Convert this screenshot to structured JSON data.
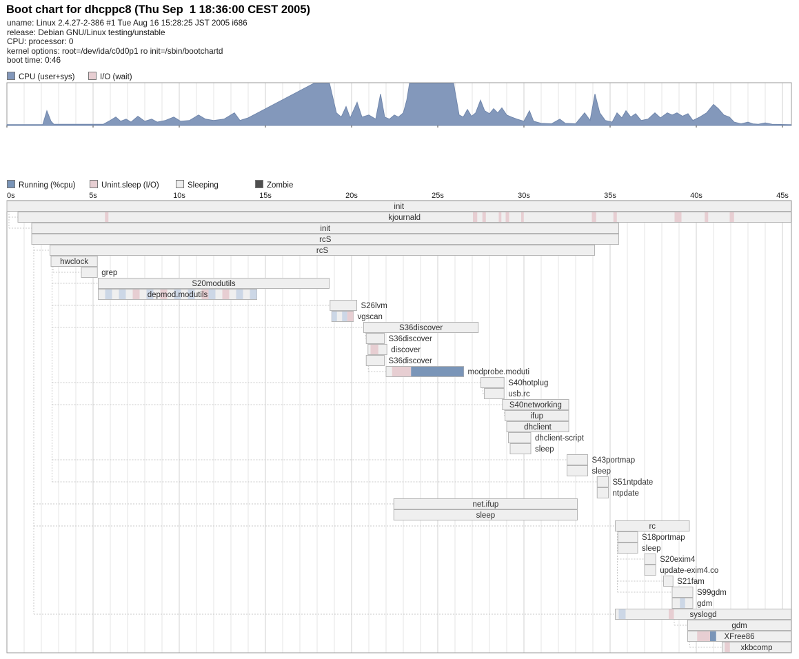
{
  "header": {
    "title": "Boot chart for dhcppc8 (Thu Sep  1 18:36:00 CEST 2005)",
    "info_lines": [
      "uname: Linux 2.4.27-2-386 #1 Tue Aug 16 15:28:25 JST 2005 i686",
      "release: Debian GNU/Linux testing/unstable",
      "CPU: processor: 0",
      "kernel options: root=/dev/ida/c0d0p1 ro init=/sbin/bootchartd",
      "boot time: 0:46"
    ]
  },
  "colors": {
    "cpu_fill": "#8398bb",
    "cpu_stroke": "#7187ac",
    "run_blue": "#7a95b8",
    "io_pink": "#e7ced2",
    "sleep_gray": "#efefef",
    "zombie": "#4f4f4f",
    "light_blue": "#ccd7e6",
    "bar_border": "#b5b5b5",
    "grid_minor": "#e6e6e6",
    "grid_major": "#d2d2d2",
    "frame": "#9a9a9a",
    "connector": "#c8c8c8",
    "label_text": "#303030"
  },
  "chart_data": [
    {
      "type": "area",
      "title": "CPU usage during boot",
      "x_unit": "seconds",
      "xlim": [
        0,
        45.5
      ],
      "ylim": [
        0,
        100
      ],
      "grid": true,
      "legend_position": "top-left",
      "legend_items": [
        {
          "label": "CPU (user+sys)",
          "color_key": "cpu_fill"
        },
        {
          "label": "I/O (wait)",
          "color_key": "io_pink"
        }
      ],
      "series": [
        {
          "name": "CPU (user+sys)",
          "points": [
            [
              0,
              2
            ],
            [
              2.08,
              2
            ],
            [
              2.32,
              35
            ],
            [
              2.56,
              10
            ],
            [
              2.72,
              3
            ],
            [
              5.6,
              3
            ],
            [
              6.0,
              12
            ],
            [
              6.32,
              20
            ],
            [
              6.6,
              10
            ],
            [
              6.92,
              15
            ],
            [
              7.2,
              8
            ],
            [
              7.6,
              22
            ],
            [
              8.0,
              10
            ],
            [
              8.4,
              15
            ],
            [
              8.72,
              8
            ],
            [
              9.2,
              12
            ],
            [
              9.68,
              20
            ],
            [
              10.08,
              10
            ],
            [
              10.6,
              12
            ],
            [
              11.12,
              25
            ],
            [
              11.52,
              15
            ],
            [
              12.0,
              12
            ],
            [
              12.6,
              15
            ],
            [
              13.2,
              30
            ],
            [
              13.52,
              12
            ],
            [
              14.0,
              18
            ],
            [
              17.8,
              100
            ],
            [
              18.72,
              100
            ],
            [
              19.12,
              30
            ],
            [
              19.4,
              20
            ],
            [
              19.68,
              45
            ],
            [
              19.92,
              18
            ],
            [
              20.32,
              55
            ],
            [
              20.6,
              20
            ],
            [
              21.0,
              25
            ],
            [
              21.4,
              15
            ],
            [
              21.68,
              75
            ],
            [
              21.92,
              20
            ],
            [
              22.2,
              15
            ],
            [
              22.48,
              25
            ],
            [
              22.72,
              20
            ],
            [
              23.0,
              30
            ],
            [
              23.2,
              60
            ],
            [
              23.36,
              100
            ],
            [
              25.92,
              100
            ],
            [
              26.24,
              25
            ],
            [
              26.48,
              20
            ],
            [
              26.72,
              38
            ],
            [
              26.96,
              22
            ],
            [
              27.2,
              30
            ],
            [
              27.48,
              60
            ],
            [
              27.72,
              35
            ],
            [
              28.0,
              28
            ],
            [
              28.24,
              40
            ],
            [
              28.48,
              30
            ],
            [
              28.72,
              42
            ],
            [
              29.0,
              25
            ],
            [
              29.28,
              20
            ],
            [
              29.6,
              15
            ],
            [
              30.0,
              10
            ],
            [
              30.32,
              35
            ],
            [
              30.56,
              10
            ],
            [
              31.0,
              5
            ],
            [
              31.6,
              4
            ],
            [
              32.08,
              15
            ],
            [
              32.4,
              5
            ],
            [
              33.0,
              4
            ],
            [
              33.52,
              30
            ],
            [
              33.84,
              12
            ],
            [
              34.12,
              75
            ],
            [
              34.4,
              30
            ],
            [
              34.72,
              12
            ],
            [
              35.12,
              8
            ],
            [
              35.4,
              30
            ],
            [
              35.68,
              18
            ],
            [
              35.92,
              35
            ],
            [
              36.2,
              20
            ],
            [
              36.48,
              28
            ],
            [
              36.8,
              12
            ],
            [
              37.2,
              15
            ],
            [
              37.6,
              30
            ],
            [
              37.92,
              18
            ],
            [
              38.32,
              30
            ],
            [
              38.6,
              25
            ],
            [
              38.88,
              30
            ],
            [
              39.2,
              22
            ],
            [
              39.52,
              28
            ],
            [
              39.8,
              12
            ],
            [
              40.2,
              20
            ],
            [
              40.6,
              30
            ],
            [
              41.0,
              50
            ],
            [
              41.28,
              40
            ],
            [
              41.6,
              25
            ],
            [
              41.92,
              20
            ],
            [
              42.2,
              8
            ],
            [
              42.6,
              4
            ],
            [
              43.0,
              8
            ],
            [
              43.28,
              4
            ],
            [
              43.6,
              3
            ],
            [
              44.0,
              6
            ],
            [
              44.4,
              3
            ],
            [
              45.5,
              2
            ]
          ]
        }
      ]
    },
    {
      "type": "table",
      "title": "Process start/stop gantt",
      "x_unit": "seconds",
      "xlim": [
        0,
        45.5
      ],
      "grid": true,
      "tick_labels": [
        "0s",
        "5s",
        "10s",
        "15s",
        "20s",
        "25s",
        "30s",
        "35s",
        "40s",
        "45s"
      ],
      "tick_seconds": [
        0,
        5,
        10,
        15,
        20,
        25,
        30,
        35,
        40,
        45
      ],
      "legend_items": [
        {
          "label": "Running (%cpu)",
          "color_key": "run_blue"
        },
        {
          "label": "Unint.sleep (I/O)",
          "color_key": "io_pink"
        },
        {
          "label": "Sleeping",
          "color_key": "sleep_gray"
        },
        {
          "label": "Zombie",
          "color_key": "zombie"
        }
      ],
      "columns": [
        "process",
        "start_s",
        "end_s",
        "label_align",
        "parent_row",
        "segments[offset_s,duration_s,state]"
      ],
      "processes": [
        {
          "name": "init",
          "start": 0,
          "end": 45.5,
          "align": "center",
          "parent": null,
          "segs": []
        },
        {
          "name": "kjournald",
          "start": 0.64,
          "end": 45.5,
          "align": "center",
          "parent": 0,
          "segs": [
            [
              5.05,
              0.2,
              "io"
            ],
            [
              26.4,
              0.25,
              "io"
            ],
            [
              26.95,
              0.2,
              "io"
            ],
            [
              27.9,
              0.15,
              "io"
            ],
            [
              28.3,
              0.2,
              "io"
            ],
            [
              29.2,
              0.15,
              "io"
            ],
            [
              33.3,
              0.25,
              "io"
            ],
            [
              34.55,
              0.2,
              "io"
            ],
            [
              38.1,
              0.4,
              "io"
            ],
            [
              39.85,
              0.2,
              "io"
            ],
            [
              41.3,
              0.25,
              "io"
            ]
          ]
        },
        {
          "name": "init",
          "start": 1.44,
          "end": 35.5,
          "align": "center",
          "parent": 0,
          "segs": []
        },
        {
          "name": "rcS",
          "start": 1.44,
          "end": 35.5,
          "align": "center",
          "parent": 2,
          "segs": []
        },
        {
          "name": "rcS",
          "start": 2.5,
          "end": 34.1,
          "align": "center",
          "parent": 3,
          "segs": []
        },
        {
          "name": "hwclock",
          "start": 2.56,
          "end": 5.25,
          "align": "center",
          "parent": 4,
          "segs": []
        },
        {
          "name": "grep",
          "start": 4.32,
          "end": 5.25,
          "align": "right",
          "parent": 5,
          "segs": []
        },
        {
          "name": "S20modutils",
          "start": 5.3,
          "end": 18.7,
          "align": "center",
          "parent": 4,
          "segs": []
        },
        {
          "name": "depmod.modutils",
          "start": 5.3,
          "end": 14.5,
          "align": "center",
          "parent": 7,
          "segs": [
            [
              0.4,
              0.4,
              "lb"
            ],
            [
              1.2,
              0.4,
              "lb"
            ],
            [
              2.0,
              0.4,
              "io"
            ],
            [
              2.8,
              0.4,
              "lb"
            ],
            [
              3.6,
              0.4,
              "io"
            ],
            [
              4.4,
              0.4,
              "lb"
            ],
            [
              5.2,
              0.4,
              "lb"
            ],
            [
              6.0,
              0.4,
              "io"
            ],
            [
              6.4,
              0.4,
              "lb"
            ],
            [
              7.2,
              0.4,
              "io"
            ],
            [
              8.0,
              0.4,
              "lb"
            ],
            [
              8.8,
              0.4,
              "lb"
            ]
          ]
        },
        {
          "name": "S26lvm",
          "start": 18.75,
          "end": 20.3,
          "align": "right",
          "parent": 4,
          "segs": []
        },
        {
          "name": "vgscan",
          "start": 18.85,
          "end": 20.1,
          "align": "right",
          "parent": 9,
          "segs": [
            [
              0.0,
              0.3,
              "lb"
            ],
            [
              0.6,
              0.3,
              "lb"
            ],
            [
              0.9,
              0.35,
              "io"
            ]
          ]
        },
        {
          "name": "S36discover",
          "start": 20.7,
          "end": 27.35,
          "align": "center",
          "parent": 4,
          "segs": []
        },
        {
          "name": "S36discover",
          "start": 20.85,
          "end": 21.9,
          "align": "right",
          "parent": 11,
          "segs": []
        },
        {
          "name": "discover",
          "start": 20.95,
          "end": 22.05,
          "align": "right",
          "parent": 12,
          "segs": [
            [
              0.15,
              0.45,
              "io"
            ]
          ]
        },
        {
          "name": "S36discover",
          "start": 20.85,
          "end": 21.9,
          "align": "right",
          "parent": 13,
          "segs": []
        },
        {
          "name": "modprobe.moduti",
          "start": 22.0,
          "end": 26.5,
          "align": "right",
          "parent": 14,
          "segs": [
            [
              0.35,
              1.1,
              "io"
            ],
            [
              1.45,
              3.05,
              "run"
            ]
          ]
        },
        {
          "name": "S40hotplug",
          "start": 27.5,
          "end": 28.85,
          "align": "right",
          "parent": 4,
          "segs": []
        },
        {
          "name": "usb.rc",
          "start": 27.7,
          "end": 28.85,
          "align": "right",
          "parent": 16,
          "segs": []
        },
        {
          "name": "S40networking",
          "start": 28.75,
          "end": 32.6,
          "align": "center",
          "parent": 4,
          "segs": []
        },
        {
          "name": "ifup",
          "start": 28.9,
          "end": 32.6,
          "align": "center",
          "parent": 18,
          "segs": []
        },
        {
          "name": "dhclient",
          "start": 29.0,
          "end": 32.6,
          "align": "center",
          "parent": 19,
          "segs": []
        },
        {
          "name": "dhclient-script",
          "start": 29.1,
          "end": 30.4,
          "align": "right",
          "parent": 20,
          "segs": []
        },
        {
          "name": "sleep",
          "start": 29.2,
          "end": 30.4,
          "align": "right",
          "parent": 21,
          "segs": []
        },
        {
          "name": "S43portmap",
          "start": 32.5,
          "end": 33.7,
          "align": "right",
          "parent": 4,
          "segs": []
        },
        {
          "name": "sleep",
          "start": 32.5,
          "end": 33.7,
          "align": "right",
          "parent": 23,
          "segs": []
        },
        {
          "name": "S51ntpdate",
          "start": 34.25,
          "end": 34.9,
          "align": "right",
          "parent": 4,
          "segs": []
        },
        {
          "name": "ntpdate",
          "start": 34.25,
          "end": 34.9,
          "align": "right",
          "parent": 25,
          "segs": []
        },
        {
          "name": "net.ifup",
          "start": 22.45,
          "end": 33.1,
          "align": "center",
          "parent": 2,
          "segs": []
        },
        {
          "name": "sleep",
          "start": 22.45,
          "end": 33.1,
          "align": "center",
          "parent": 27,
          "segs": []
        },
        {
          "name": "rc",
          "start": 35.3,
          "end": 39.6,
          "align": "center",
          "parent": 2,
          "segs": []
        },
        {
          "name": "S18portmap",
          "start": 35.45,
          "end": 36.6,
          "align": "right",
          "parent": 29,
          "segs": []
        },
        {
          "name": "sleep",
          "start": 35.45,
          "end": 36.6,
          "align": "right",
          "parent": 30,
          "segs": []
        },
        {
          "name": "S20exim4",
          "start": 37.0,
          "end": 37.65,
          "align": "right",
          "parent": 29,
          "segs": []
        },
        {
          "name": "update-exim4.co",
          "start": 37.0,
          "end": 37.65,
          "align": "right",
          "parent": 32,
          "segs": []
        },
        {
          "name": "S21fam",
          "start": 38.1,
          "end": 38.65,
          "align": "right",
          "parent": 29,
          "segs": []
        },
        {
          "name": "S99gdm",
          "start": 38.6,
          "end": 39.8,
          "align": "right",
          "parent": 29,
          "segs": []
        },
        {
          "name": "gdm",
          "start": 38.6,
          "end": 39.8,
          "align": "right",
          "parent": 35,
          "segs": [
            [
              0.45,
              0.3,
              "lb"
            ]
          ]
        },
        {
          "name": "syslogd",
          "start": 35.3,
          "end": 45.5,
          "align": "center",
          "parent": 2,
          "segs": [
            [
              0.2,
              0.4,
              "lb"
            ],
            [
              3.1,
              0.3,
              "io"
            ]
          ]
        },
        {
          "name": "gdm",
          "start": 39.5,
          "end": 45.5,
          "align": "center",
          "parent": 36,
          "segs": []
        },
        {
          "name": "XFree86",
          "start": 39.5,
          "end": 45.5,
          "align": "center",
          "parent": 38,
          "segs": [
            [
              0.55,
              0.75,
              "io"
            ],
            [
              1.3,
              0.35,
              "run"
            ]
          ]
        },
        {
          "name": "xkbcomp",
          "start": 41.5,
          "end": 45.5,
          "align": "center",
          "parent": 39,
          "segs": [
            [
              0.15,
              0.3,
              "io"
            ]
          ]
        }
      ]
    }
  ]
}
